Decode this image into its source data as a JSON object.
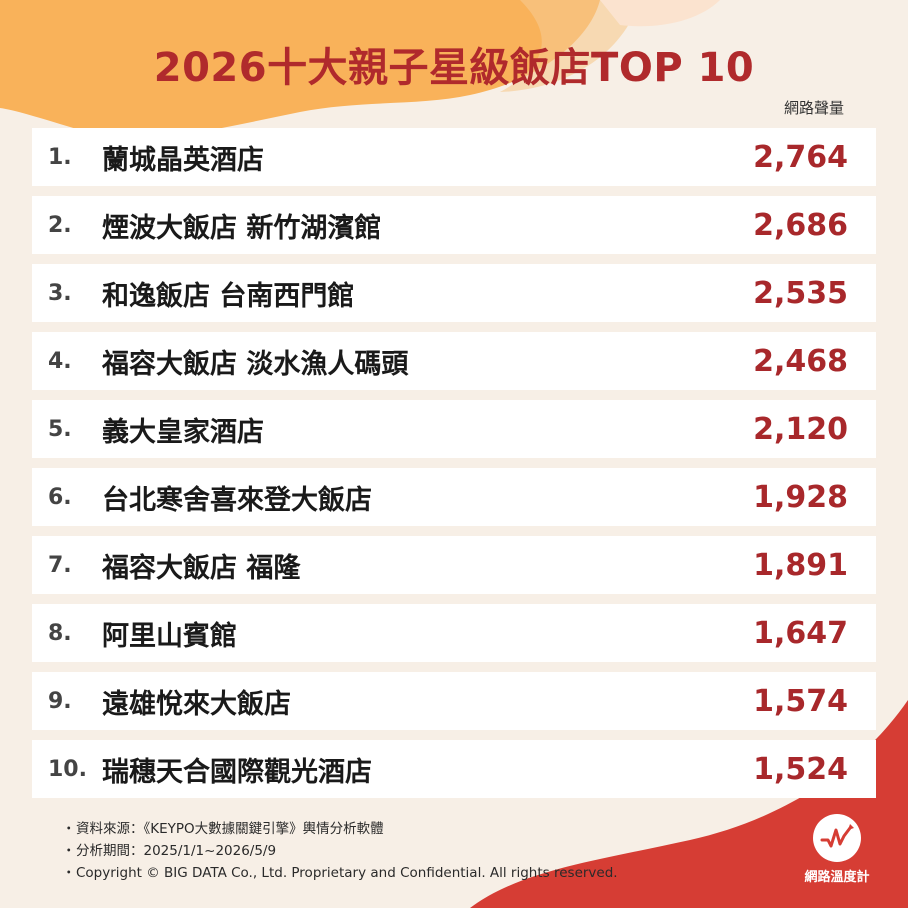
{
  "title": "2026十大親子星級飯店TOP 10",
  "metric_label": "網路聲量",
  "ranking": [
    {
      "rank": "1.",
      "name": "蘭城晶英酒店",
      "value": "2,764"
    },
    {
      "rank": "2.",
      "name": "煙波大飯店 新竹湖濱館",
      "value": "2,686"
    },
    {
      "rank": "3.",
      "name": "和逸飯店 台南西門館",
      "value": "2,535"
    },
    {
      "rank": "4.",
      "name": "福容大飯店 淡水漁人碼頭",
      "value": "2,468"
    },
    {
      "rank": "5.",
      "name": "義大皇家酒店",
      "value": "2,120"
    },
    {
      "rank": "6.",
      "name": "台北寒舍喜來登大飯店",
      "value": "1,928"
    },
    {
      "rank": "7.",
      "name": "福容大飯店 福隆",
      "value": "1,891"
    },
    {
      "rank": "8.",
      "name": "阿里山賓館",
      "value": "1,647"
    },
    {
      "rank": "9.",
      "name": "遠雄悅來大飯店",
      "value": "1,574"
    },
    {
      "rank": "10.",
      "name": "瑞穗天合國際觀光酒店",
      "value": "1,524"
    }
  ],
  "footer": {
    "source": "資料來源：《KEYPO大數據關鍵引擎》輿情分析軟體",
    "period": "分析期間：2025/1/1~2026/5/9",
    "copyright": "Copyright © BIG DATA Co., Ltd. Proprietary and Confidential. All rights reserved.",
    "bullet": "・"
  },
  "logo": {
    "text": "網路溫度計",
    "icon": "pulse-chart-icon"
  },
  "colors": {
    "accent": "#b02a2c",
    "value": "#a8282b",
    "blob_orange": "#f9b25a",
    "blob_red": "#d63d34",
    "background": "#f7efe6"
  }
}
